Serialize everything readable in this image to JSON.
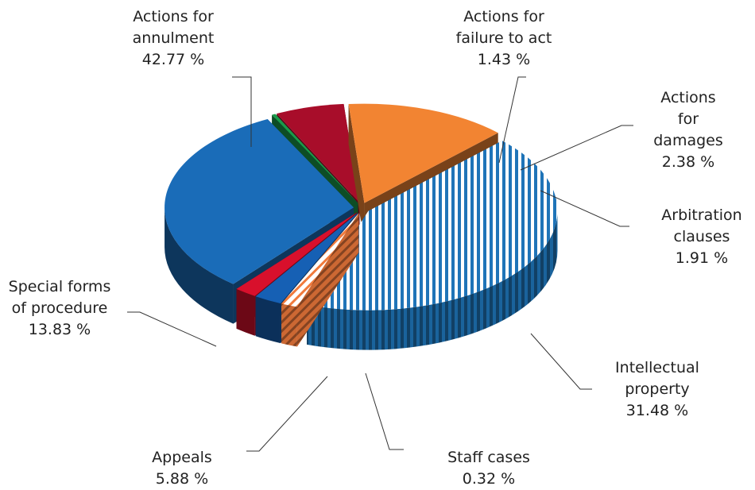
{
  "chart_data": {
    "type": "pie3d",
    "categories": [
      "Actions for\nannulment",
      "Actions for\nfailure to act",
      "Actions for\ndamages",
      "Arbitration\nclauses",
      "Intellectual\nproperty",
      "Staff cases",
      "Appeals",
      "Special forms\nof procedure"
    ],
    "values": [
      42.77,
      1.43,
      2.38,
      1.91,
      31.48,
      0.32,
      5.88,
      13.83
    ],
    "value_labels": [
      "42.77 %",
      "1.43 %",
      "2.38 %",
      "1.91 %",
      "31.48 %",
      "0.32 %",
      "5.88 %",
      "13.83 %"
    ],
    "colors": [
      "#1f74b8",
      "#f07a3c",
      "#1660b4",
      "#d8102c",
      "#1a6cb8",
      "#1a9a4a",
      "#a80d2a",
      "#f28432"
    ],
    "patterns": [
      "stripes",
      "hatch",
      null,
      null,
      null,
      null,
      null,
      null
    ]
  }
}
